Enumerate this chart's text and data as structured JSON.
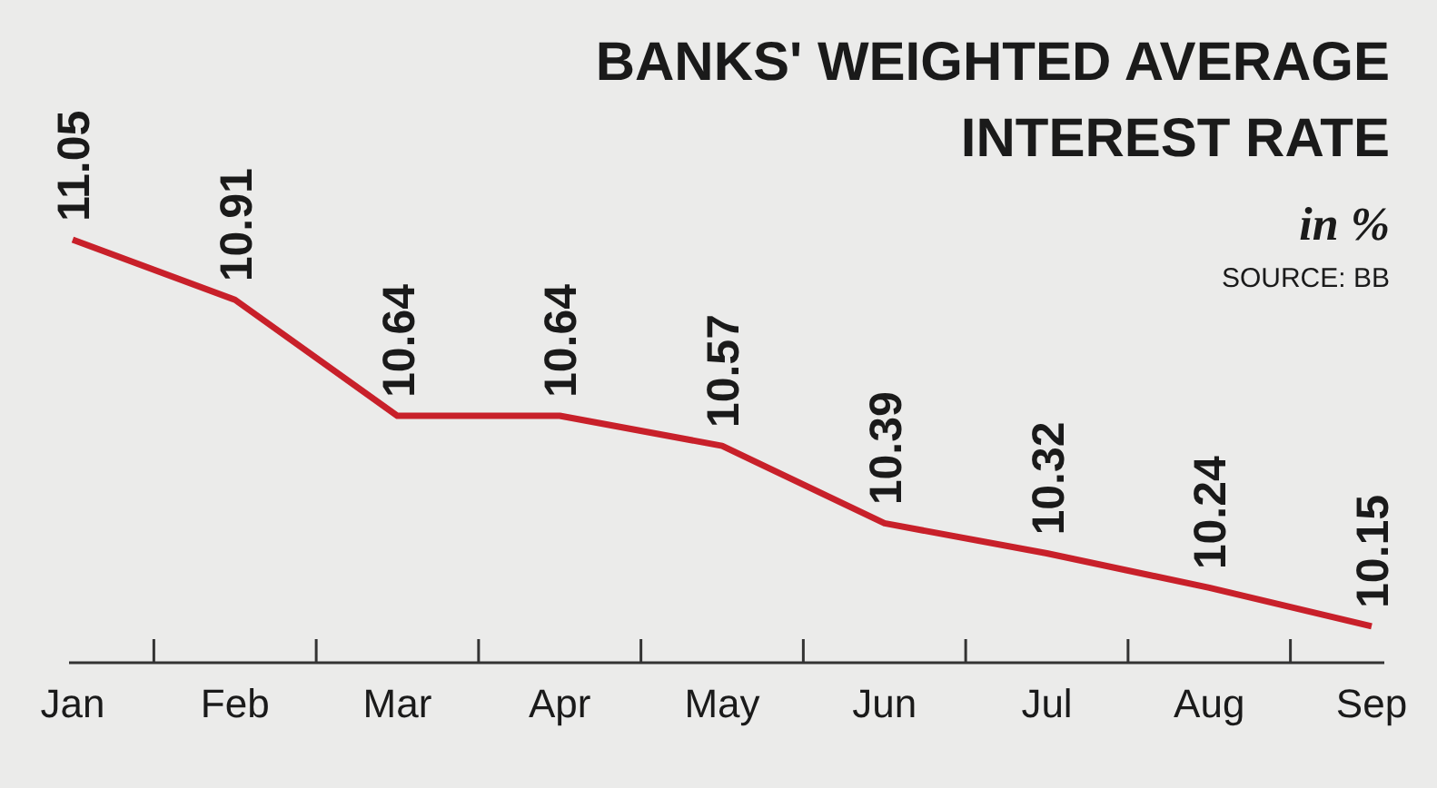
{
  "chart_data": {
    "type": "line",
    "title": "BANKS' WEIGHTED AVERAGE INTEREST RATE",
    "subtitle": "in %",
    "annotations": [
      "SOURCE: BB"
    ],
    "categories": [
      "Jan",
      "Feb",
      "Mar",
      "Apr",
      "May",
      "Jun",
      "Jul",
      "Aug",
      "Sep"
    ],
    "series": [
      {
        "color": "#c8202a",
        "values": [
          11.05,
          10.91,
          10.64,
          10.64,
          10.57,
          10.39,
          10.32,
          10.24,
          10.15
        ]
      }
    ],
    "data_labels": true,
    "marker": "none",
    "line_style": "solid"
  }
}
